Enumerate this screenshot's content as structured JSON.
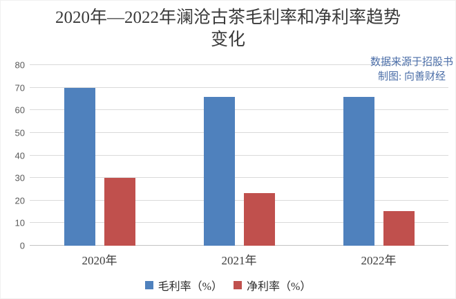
{
  "title": {
    "line1": "2020年—2022年澜沧古茶毛利率和净利率趋势",
    "line2": "变化"
  },
  "annotations": {
    "source": "数据来源于招股书",
    "credit": "制图: 向善财经",
    "color": "#4a6da7"
  },
  "chart_data": {
    "type": "bar",
    "title": "2020年—2022年澜沧古茶毛利率和净利率趋势变化",
    "categories": [
      "2020年",
      "2021年",
      "2022年"
    ],
    "series": [
      {
        "name": "毛利率（%）",
        "color": "#4f81bd",
        "values": [
          70,
          66,
          66
        ]
      },
      {
        "name": "净利率（%）",
        "color": "#c0504d",
        "values": [
          30,
          23.3,
          15.4
        ]
      }
    ],
    "ylim": [
      0,
      80
    ],
    "yticks": [
      0,
      10,
      20,
      30,
      40,
      50,
      60,
      70,
      80
    ],
    "xlabel": "",
    "ylabel": "",
    "grid": true,
    "grid_color": "#d9d9d9",
    "legend_position": "bottom"
  }
}
